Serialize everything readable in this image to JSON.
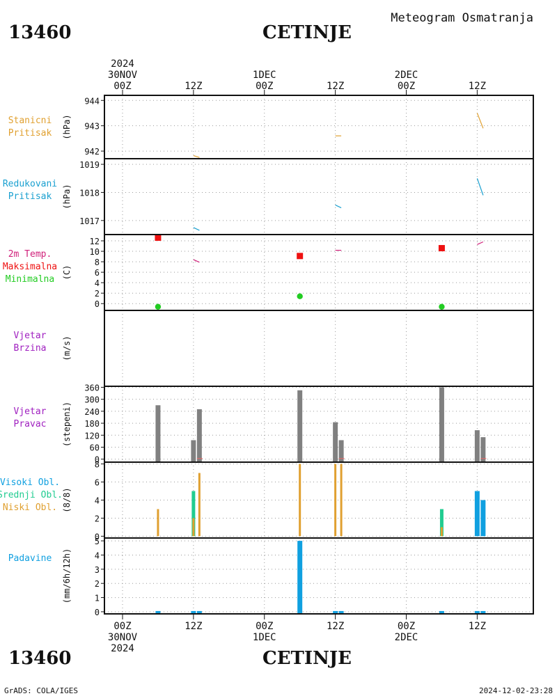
{
  "header": {
    "station_id": "13460",
    "station_name": "CETINJE",
    "title": "Meteogram Osmatranja"
  },
  "footer": {
    "station_id": "13460",
    "station_name": "CETINJE",
    "source": "GrADS: COLA/IGES",
    "timestamp": "2024-12-02-23:28"
  },
  "time_axis": {
    "top_labels": [
      {
        "hour": 0,
        "lines": [
          "2024",
          "30NOV",
          "00Z"
        ]
      },
      {
        "hour": 12,
        "lines": [
          "12Z"
        ]
      },
      {
        "hour": 24,
        "lines": [
          "1DEC",
          "00Z"
        ]
      },
      {
        "hour": 36,
        "lines": [
          "12Z"
        ]
      },
      {
        "hour": 48,
        "lines": [
          "2DEC",
          "00Z"
        ]
      },
      {
        "hour": 60,
        "lines": [
          "12Z"
        ]
      }
    ],
    "bottom_labels": [
      {
        "hour": 0,
        "lines": [
          "00Z",
          "30NOV",
          "2024"
        ]
      },
      {
        "hour": 12,
        "lines": [
          "12Z"
        ]
      },
      {
        "hour": 24,
        "lines": [
          "00Z",
          "1DEC"
        ]
      },
      {
        "hour": 36,
        "lines": [
          "12Z"
        ]
      },
      {
        "hour": 48,
        "lines": [
          "00Z",
          "2DEC"
        ]
      },
      {
        "hour": 60,
        "lines": [
          "12Z"
        ]
      }
    ]
  },
  "colors": {
    "pressure": "#e0a030",
    "reduced": "#1aa0d0",
    "temp": "#d0207a",
    "tmax": "#ee1111",
    "tmin": "#22cc22",
    "wind": "#a020c0",
    "dir": "#808080",
    "cloud_high": "#10a0e0",
    "cloud_mid": "#20cc90",
    "cloud_low": "#e0a030",
    "precip": "#10a0e0"
  },
  "chart_data": [
    {
      "type": "line",
      "panel": "pressure",
      "labels": [
        "Stanicni",
        "Pritisak"
      ],
      "unit": "(hPa)",
      "ylim": [
        941.7,
        944.2
      ],
      "ticks": [
        942,
        943,
        944
      ],
      "series": [
        {
          "points": [
            [
              12,
              941.82
            ],
            [
              13,
              941.75
            ]
          ]
        },
        {
          "points": [
            [
              36,
              942.6
            ],
            [
              37,
              942.6
            ]
          ]
        },
        {
          "points": [
            [
              60,
              943.5
            ],
            [
              61,
              942.9
            ]
          ]
        }
      ]
    },
    {
      "type": "line",
      "panel": "reduced",
      "labels": [
        "Redukovani",
        "Pritisak"
      ],
      "unit": "(hPa)",
      "ylim": [
        1016.5,
        1019.2
      ],
      "ticks": [
        1017,
        1018,
        1019
      ],
      "series": [
        {
          "points": [
            [
              12,
              1016.75
            ],
            [
              13,
              1016.65
            ]
          ]
        },
        {
          "points": [
            [
              36,
              1017.55
            ],
            [
              37,
              1017.45
            ]
          ]
        },
        {
          "points": [
            [
              60,
              1018.5
            ],
            [
              61,
              1017.9
            ]
          ]
        }
      ]
    },
    {
      "type": "scatter",
      "panel": "temp",
      "labels": [
        "2m Temp.",
        "Maksimalna",
        "Minimalna"
      ],
      "unit": "(C)",
      "ylim": [
        -1.3,
        13.2
      ],
      "ticks": [
        0,
        2,
        4,
        6,
        8,
        10,
        12
      ],
      "temp_lines": [
        {
          "points": [
            [
              12,
              8.4
            ],
            [
              13,
              7.9
            ]
          ]
        },
        {
          "points": [
            [
              36,
              10.2
            ],
            [
              37,
              10.2
            ]
          ]
        },
        {
          "points": [
            [
              60,
              11.3
            ],
            [
              61,
              11.8
            ]
          ]
        }
      ],
      "tmax": [
        [
          6,
          12.6
        ],
        [
          30,
          9.1
        ],
        [
          54,
          10.6
        ]
      ],
      "tmin": [
        [
          6,
          -0.6
        ],
        [
          30,
          1.4
        ],
        [
          54,
          -0.6
        ]
      ]
    },
    {
      "type": "line",
      "panel": "wind",
      "labels": [
        "Vjetar",
        "Brzina"
      ],
      "unit": "(m/s)",
      "ylim": [
        0,
        1
      ],
      "ticks": [],
      "series": []
    },
    {
      "type": "bar",
      "panel": "direction",
      "labels": [
        "Vjetar",
        "Pravac"
      ],
      "unit": "(stepeni)",
      "ylim": [
        -15,
        365
      ],
      "ticks": [
        0,
        60,
        120,
        180,
        240,
        300,
        360
      ],
      "bars": [
        [
          6,
          270
        ],
        [
          12,
          95
        ],
        [
          13,
          250
        ],
        [
          30,
          345
        ],
        [
          36,
          185
        ],
        [
          37,
          95
        ],
        [
          54,
          360
        ],
        [
          60,
          145
        ],
        [
          61,
          110
        ]
      ]
    },
    {
      "type": "bar",
      "panel": "clouds",
      "labels": [
        "Visoki Obl.",
        "Srednji Obl.",
        "Niski Obl."
      ],
      "unit": "(8/8)",
      "ylim": [
        -0.2,
        8.2
      ],
      "ticks": [
        0,
        2,
        4,
        6,
        8
      ],
      "high": [
        [
          60,
          5
        ],
        [
          61,
          4
        ]
      ],
      "mid": [
        [
          12,
          5
        ],
        [
          54,
          3
        ]
      ],
      "low": [
        [
          6,
          3
        ],
        [
          12,
          2
        ],
        [
          13,
          7
        ],
        [
          30,
          8
        ],
        [
          36,
          8
        ],
        [
          37,
          8
        ],
        [
          54,
          1
        ]
      ]
    },
    {
      "type": "bar",
      "panel": "precip",
      "labels": [
        "Padavine"
      ],
      "unit": "(mm/6h/12h)",
      "ylim": [
        -0.15,
        5.2
      ],
      "ticks": [
        0,
        1,
        2,
        3,
        4,
        5
      ],
      "bars": [
        [
          6,
          0.05
        ],
        [
          12,
          0.05
        ],
        [
          13,
          0.05
        ],
        [
          30,
          5.0
        ],
        [
          36,
          0.05
        ],
        [
          37,
          0.05
        ],
        [
          54,
          0.05
        ],
        [
          60,
          0.05
        ],
        [
          61,
          0.05
        ]
      ]
    }
  ]
}
